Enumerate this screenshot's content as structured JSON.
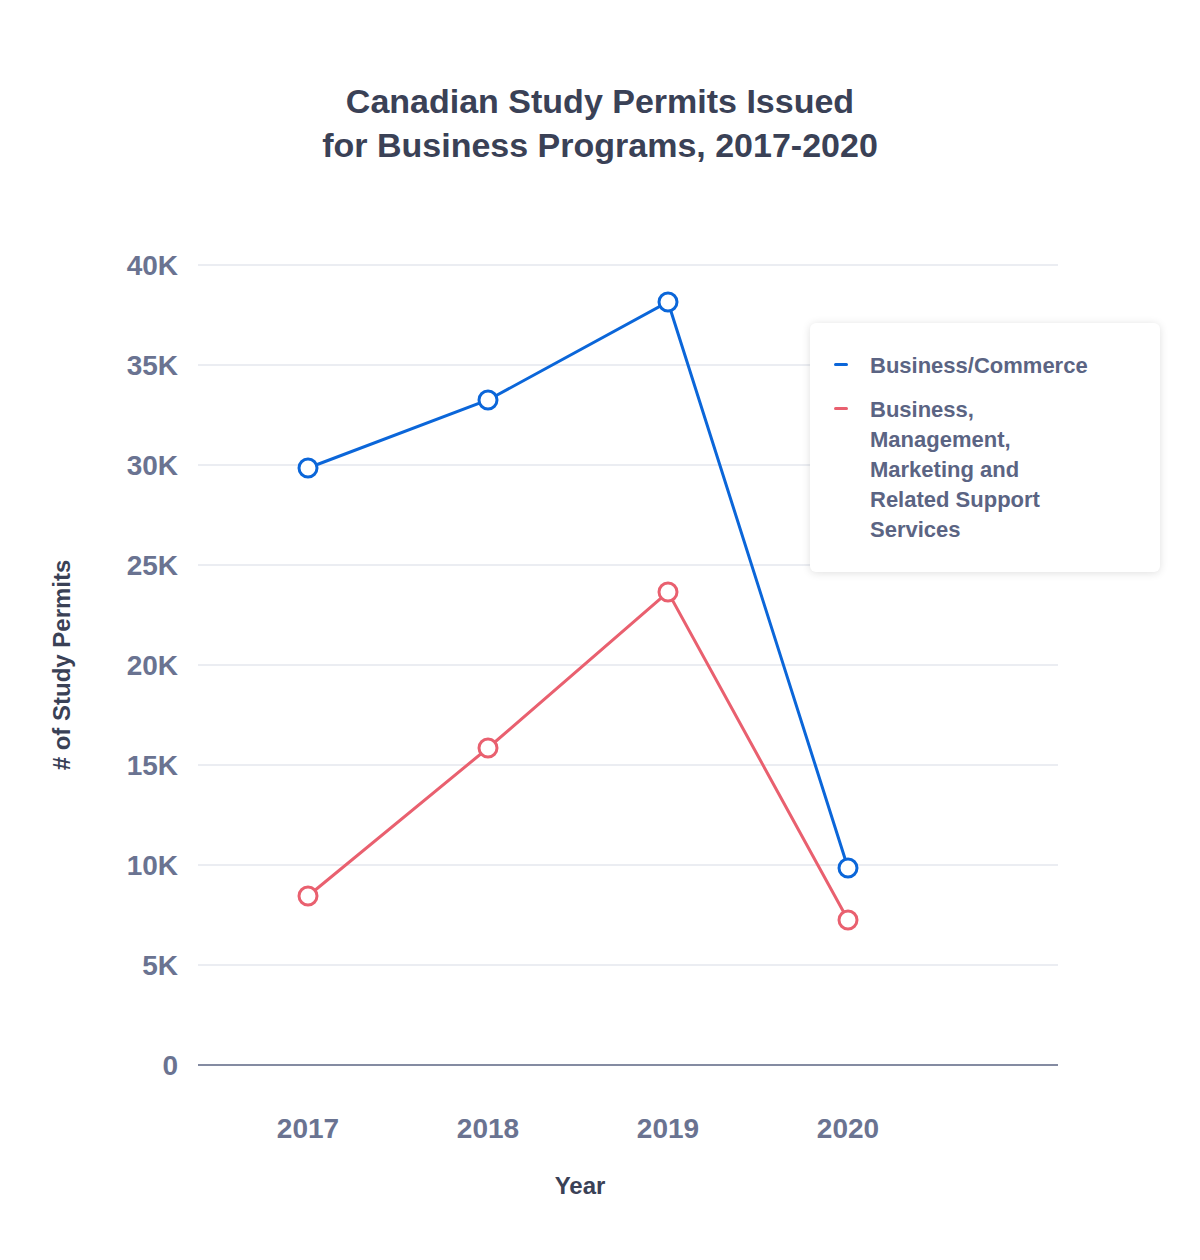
{
  "chart_data": {
    "type": "line",
    "title": "Canadian Study Permits Issued\nfor Business Programs, 2017-2020",
    "x_label": "Year",
    "y_label": "# of Study Permits",
    "categories": [
      "2017",
      "2018",
      "2019",
      "2020"
    ],
    "series": [
      {
        "name": "Business/Commerce",
        "color": "#0b66d9",
        "marker": "circle",
        "line_style": "solid",
        "values": [
          29850,
          33250,
          38150,
          9850
        ]
      },
      {
        "name": "Business, Management, Marketing and Related Support Services",
        "color": "#e9606f",
        "marker": "circle",
        "line_style": "solid",
        "values": [
          8450,
          15850,
          23650,
          7250
        ]
      }
    ],
    "ylim": [
      0,
      40000
    ],
    "yticks": [
      0,
      {
        "value": 5000,
        "label": "5K"
      },
      {
        "value": 10000,
        "label": "10K"
      },
      {
        "value": 15000,
        "label": "15K"
      },
      {
        "value": 20000,
        "label": "20K"
      },
      {
        "value": 25000,
        "label": "25K"
      },
      {
        "value": 30000,
        "label": "30K"
      },
      {
        "value": 35000,
        "label": "35K"
      },
      {
        "value": 40000,
        "label": "40K"
      }
    ],
    "grid": true,
    "legend": "upper right"
  }
}
